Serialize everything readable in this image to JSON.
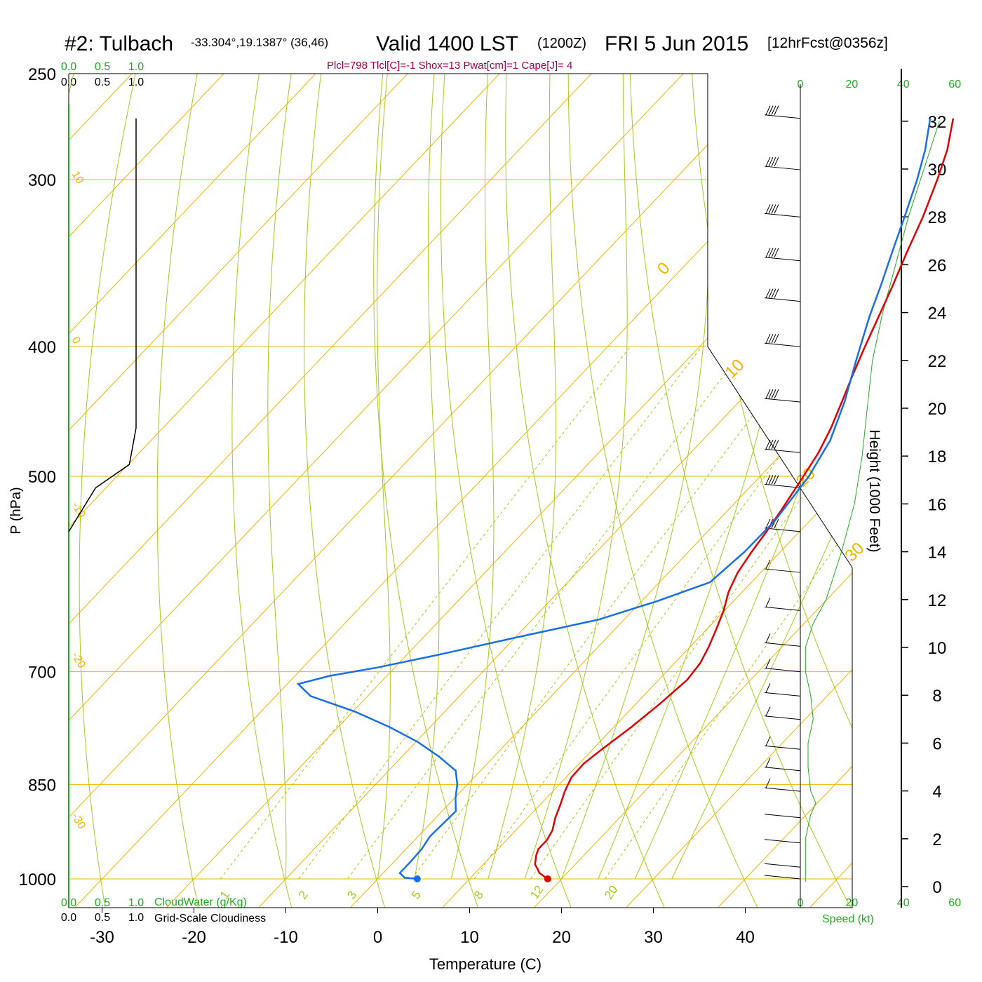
{
  "header": {
    "station": "#2: Tulbach",
    "coords": "-33.304°,19.1387° (36,46)",
    "valid": "Valid 1400 LST",
    "zulu": "(1200Z)",
    "date": "FRI 5 Jun 2015",
    "forecast": "[12hrFcst@0356z]",
    "indices": "Plcl=798 Tlcl[C]=-1 Shox=13 Pwat[cm]=1 Cape[J]= 4"
  },
  "cloud_scale": {
    "ticks": [
      "0.0",
      "0.5",
      "1.0"
    ],
    "cloudwater_label": "CloudWater (g/Kg)",
    "cloudiness_label": "Grid-Scale Cloudiness"
  },
  "speed_axis": {
    "ticks": [
      "0",
      "20",
      "40",
      "60"
    ],
    "label": "Speed (kt)"
  },
  "colors": {
    "temperature": "#e00000",
    "dewpoint": "#1a6fe8",
    "isobar_isotherm": "#f2b400",
    "dry_adiabat": "#a6c81e",
    "mixing_ratio": "#a6c81e",
    "cloud": "#22aa22",
    "indices_text": "#a0004a",
    "speed": "#22aa22"
  },
  "chart_data": {
    "type": "line",
    "title": "",
    "xlabel": "Temperature (C)",
    "ylabel": "P (hPa)",
    "y2label": "Height (1000 Feet)",
    "xlim": [
      -34,
      36
    ],
    "ylim": [
      1050,
      250
    ],
    "y_scale": "log",
    "x_ticks": [
      -30,
      -20,
      -10,
      0,
      10,
      20,
      30,
      40
    ],
    "pressure_ticks": [
      250,
      300,
      400,
      500,
      700,
      850,
      1000
    ],
    "height_ticks": [
      0,
      2,
      4,
      6,
      8,
      10,
      12,
      14,
      16,
      18,
      20,
      22,
      24,
      26,
      28,
      30,
      32
    ],
    "isotherm_labels": [
      {
        "label": "0",
        "p": 354
      },
      {
        "label": "10",
        "p": 423
      },
      {
        "label": "20",
        "p": 510
      },
      {
        "label": "30",
        "p": 580
      }
    ],
    "left_labels": [
      {
        "label": "10",
        "p": 297
      },
      {
        "label": "0",
        "p": 395
      },
      {
        "label": "-10",
        "p": 525
      },
      {
        "label": "-20",
        "p": 680
      },
      {
        "label": "-30",
        "p": 897
      }
    ],
    "mixing_ratio_labels": [
      "1",
      "2",
      "3",
      "5",
      "8",
      "12",
      "20"
    ],
    "mixing_ratio_values": [
      1,
      2,
      3,
      5,
      8,
      12,
      20
    ],
    "series": [
      {
        "name": "Temperature",
        "pressure": [
          1000,
          990,
          975,
          960,
          950,
          935,
          920,
          900,
          880,
          860,
          840,
          820,
          800,
          770,
          740,
          710,
          690,
          670,
          650,
          630,
          610,
          590,
          570,
          550,
          530,
          500,
          480,
          460,
          440,
          420,
          400,
          380,
          360,
          340,
          320,
          300,
          285,
          270
        ],
        "values": [
          18.5,
          17.0,
          15.6,
          14.8,
          14.4,
          14.4,
          14.0,
          13.0,
          12.2,
          11.3,
          10.6,
          10.5,
          11.0,
          11.9,
          12.6,
          13.1,
          12.8,
          12.0,
          11.0,
          9.9,
          8.5,
          7.5,
          6.9,
          6.4,
          5.8,
          4.7,
          3.9,
          2.7,
          1.2,
          -0.4,
          -2.0,
          -3.6,
          -5.3,
          -7.2,
          -9.1,
          -11.4,
          -13.4,
          -16.0
        ]
      },
      {
        "name": "Dew Point",
        "pressure": [
          1000,
          998,
          990,
          970,
          950,
          930,
          910,
          890,
          870,
          850,
          830,
          810,
          790,
          770,
          750,
          730,
          715,
          705,
          695,
          680,
          660,
          640,
          620,
          600,
          570,
          540,
          500,
          470,
          440,
          410,
          380,
          360,
          340,
          320,
          300,
          285,
          270
        ],
        "values": [
          4.3,
          2.8,
          1.8,
          1.8,
          1.7,
          1.3,
          1.4,
          1.5,
          0.1,
          -1.1,
          -2.7,
          -6.0,
          -9.8,
          -14.4,
          -19.7,
          -26.2,
          -28.8,
          -26.2,
          -21.9,
          -16.6,
          -9.9,
          -2.8,
          1.7,
          5.5,
          6.1,
          6.2,
          5.3,
          3.9,
          1.5,
          -1.5,
          -4.6,
          -6.6,
          -8.8,
          -11.1,
          -13.6,
          -15.8,
          -18.5
        ]
      }
    ],
    "parcel_points": [
      {
        "name": "Surface Temperature",
        "p": 1000,
        "t": 18.5
      },
      {
        "name": "Surface Dew Point",
        "p": 1000,
        "t": 4.3
      }
    ],
    "grid_scale_cloudiness_profile": {
      "pressure": [
        270,
        460,
        490,
        510,
        550
      ],
      "values": [
        1.0,
        1.0,
        0.9,
        0.4,
        0.0
      ]
    },
    "wind_speed_profile": {
      "heights_kft": [
        0.2,
        0.5,
        1,
        2,
        3,
        3.5,
        4,
        5,
        6,
        7,
        8,
        9,
        10,
        11,
        12,
        14,
        16,
        18,
        20,
        22,
        24,
        26,
        28,
        30,
        32
      ],
      "speed_kt": [
        2,
        2,
        2,
        2,
        4,
        6,
        4,
        3,
        3,
        5,
        4,
        2,
        2,
        5,
        10,
        16,
        21,
        24,
        26,
        28,
        32,
        37,
        42,
        48,
        54
      ]
    }
  }
}
